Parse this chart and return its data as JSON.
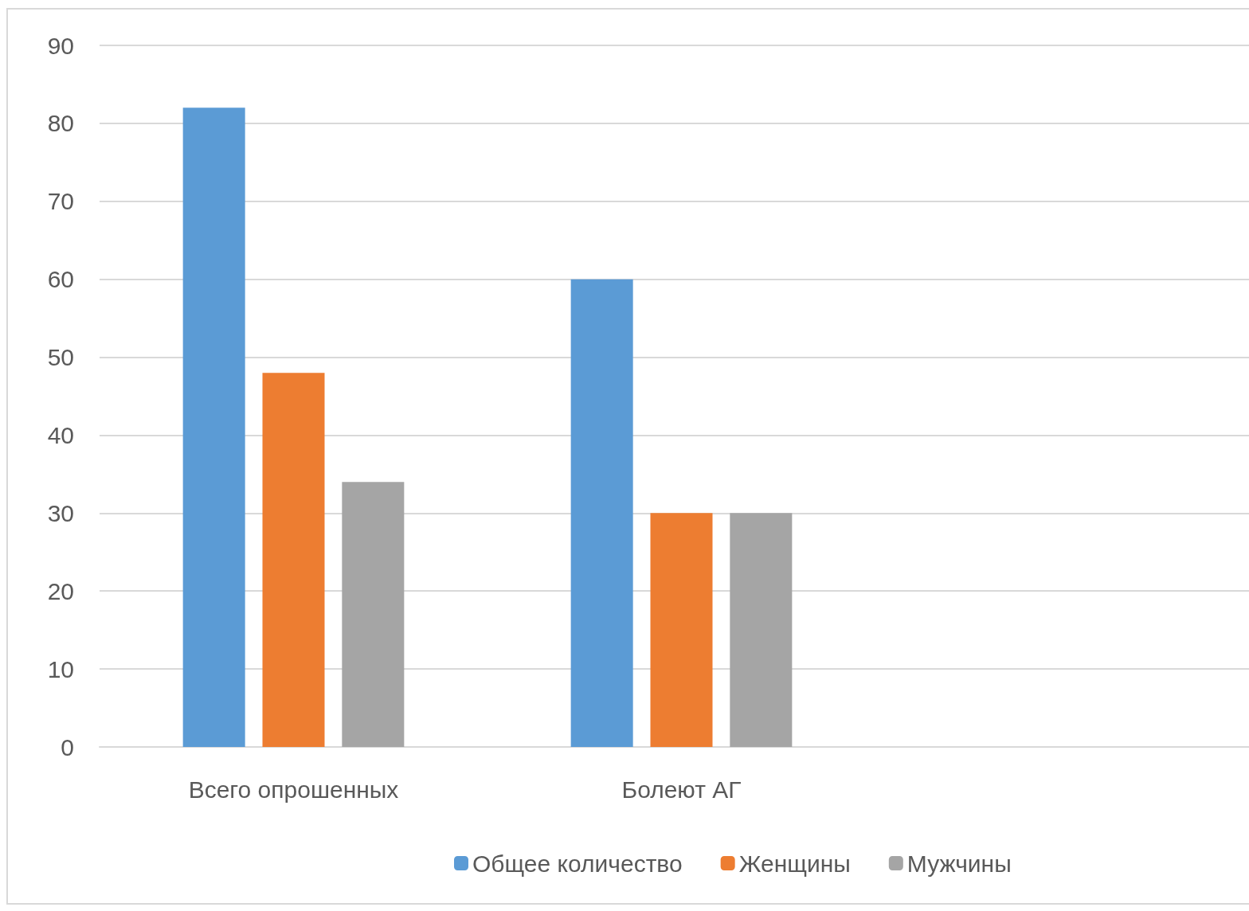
{
  "chart_data": {
    "type": "bar",
    "categories": [
      "Всего опрошенных",
      "Болеют АГ",
      null
    ],
    "series": [
      {
        "name": "Общее количество",
        "color": "#5b9bd5",
        "values": [
          82,
          60,
          null
        ]
      },
      {
        "name": "Женщины",
        "color": "#ed7d31",
        "values": [
          48,
          30,
          null
        ]
      },
      {
        "name": "Мужчины",
        "color": "#a5a5a5",
        "values": [
          34,
          30,
          null
        ]
      }
    ],
    "ylim": [
      0,
      90
    ],
    "yticks": [
      0,
      10,
      20,
      30,
      40,
      50,
      60,
      70,
      80,
      90
    ],
    "grid": "y",
    "legend": "bottom"
  }
}
